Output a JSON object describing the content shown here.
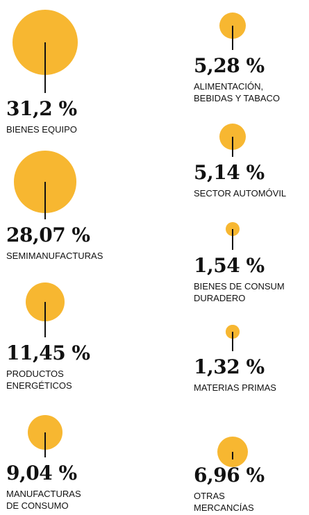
{
  "chart_data": {
    "type": "bubble",
    "color": "#f7b731",
    "categories": [
      "BIENES EQUIPO",
      "SEMIMANUFACTURAS",
      "PRODUCTOS ENERGÉTICOS",
      "MANUFACTURAS DE CONSUMO",
      "ALIMENTACIÓN, BEBIDAS Y TABACO",
      "SECTOR AUTOMÓVIL",
      "BIENES DE CONSUM DURADERO",
      "MATERIAS PRIMAS",
      "OTRAS MERCANCÍAS"
    ],
    "values": [
      31.2,
      28.07,
      11.45,
      9.04,
      5.28,
      5.14,
      1.54,
      1.32,
      6.96
    ],
    "value_labels": [
      "31,2 %",
      "28,07 %",
      "11,45 %",
      "9,04 %",
      "5,28 %",
      "5,14 %",
      "1,54 %",
      "1,32 %",
      "6,96 %"
    ]
  }
}
